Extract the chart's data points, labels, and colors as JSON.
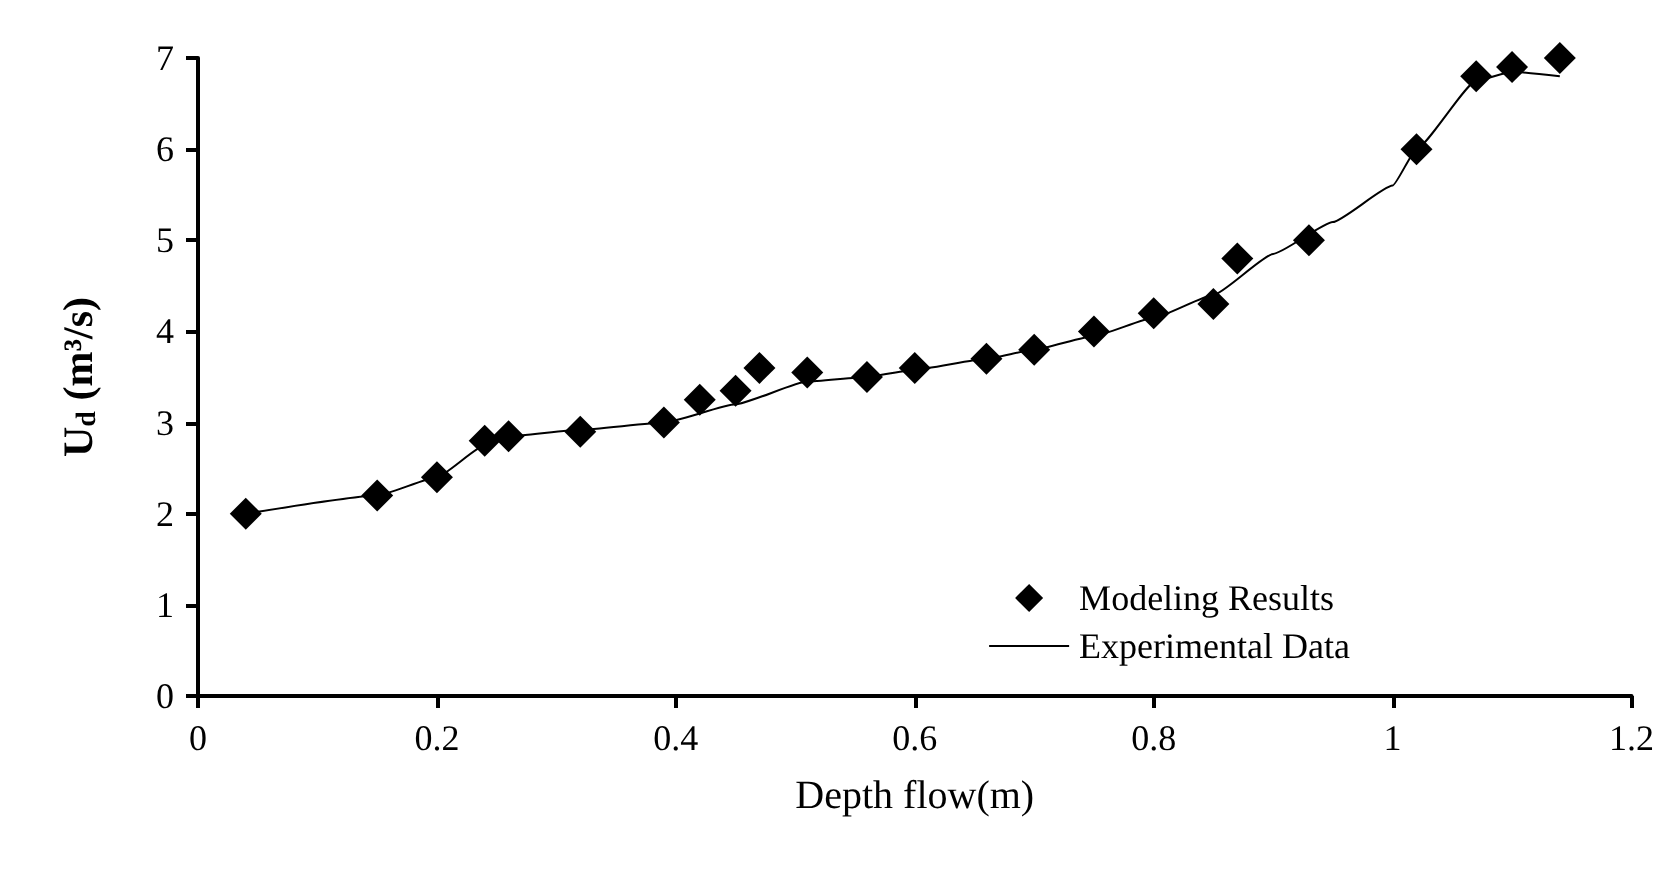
{
  "chart_data": {
    "type": "scatter",
    "xlabel": "Depth flow(m)",
    "ylabel": "U$_{d}$ (m³/s)",
    "xlim": [
      0,
      1.2
    ],
    "xticks": [
      0,
      0.2,
      0.4,
      0.6,
      0.8,
      1,
      1.2
    ],
    "ylim": [
      0,
      7
    ],
    "yticks": [
      0,
      1,
      2,
      3,
      4,
      5,
      6,
      7
    ],
    "grid": false,
    "legend": "bottom right",
    "series": [
      {
        "name": "Modeling Results",
        "marker": "diamond",
        "color": "#000000",
        "x": [
          0.04,
          0.15,
          0.2,
          0.24,
          0.26,
          0.32,
          0.39,
          0.42,
          0.45,
          0.47,
          0.51,
          0.56,
          0.6,
          0.66,
          0.7,
          0.75,
          0.8,
          0.85,
          0.87,
          0.93,
          1.02,
          1.07,
          1.1,
          1.14
        ],
        "values": [
          2.0,
          2.2,
          2.4,
          2.8,
          2.85,
          2.9,
          3.0,
          3.25,
          3.35,
          3.6,
          3.55,
          3.5,
          3.6,
          3.7,
          3.8,
          4.0,
          4.2,
          4.3,
          4.8,
          5.0,
          6.0,
          6.8,
          6.9,
          7.0
        ]
      },
      {
        "name": "Experimental Data",
        "type": "line",
        "marker": "none",
        "line_style": "solid",
        "color": "#000000",
        "x": [
          0.04,
          0.15,
          0.2,
          0.24,
          0.26,
          0.32,
          0.39,
          0.45,
          0.51,
          0.56,
          0.6,
          0.66,
          0.7,
          0.75,
          0.8,
          0.85,
          0.9,
          0.95,
          1.0,
          1.02,
          1.07,
          1.1,
          1.14
        ],
        "values": [
          2.0,
          2.2,
          2.4,
          2.75,
          2.85,
          2.92,
          3.0,
          3.2,
          3.45,
          3.5,
          3.58,
          3.7,
          3.8,
          3.95,
          4.15,
          4.4,
          4.85,
          5.2,
          5.6,
          6.0,
          6.75,
          6.85,
          6.8
        ]
      }
    ]
  }
}
